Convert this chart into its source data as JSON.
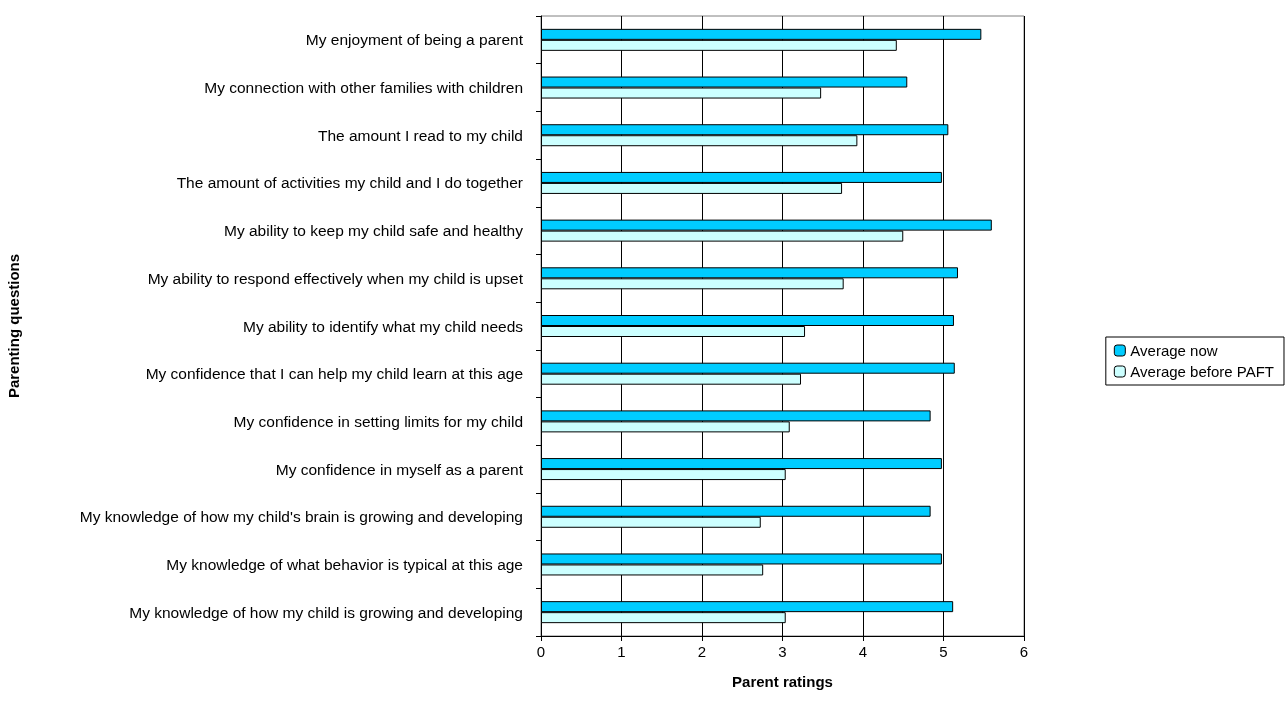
{
  "chart_data": {
    "type": "bar",
    "orientation": "horizontal",
    "xlabel": "Parent ratings",
    "ylabel": "Parenting questions",
    "categories": [
      "My enjoyment of being a parent",
      "My connection with other families with children",
      "The amount I read to my child",
      "The amount of activities my child and I do together",
      "My ability to keep my child safe and healthy",
      "My ability to respond effectively when my child is upset",
      "My ability to identify what my child needs",
      "My confidence that I can help my child learn at this age",
      "My confidence in setting limits for my child",
      "My confidence in myself as a parent",
      "My knowledge of how my child's brain is growing and developing",
      "My knowledge of what behavior is typical at this age",
      "My knowledge of how my child is growing and developing"
    ],
    "series": [
      {
        "name": "Average now",
        "color": "#00ccff",
        "values": [
          5.47,
          4.55,
          5.06,
          4.98,
          5.6,
          5.18,
          5.13,
          5.14,
          4.84,
          4.98,
          4.84,
          4.98,
          5.12
        ]
      },
      {
        "name": "Average before PAFT",
        "color": "#ccffff",
        "values": [
          4.42,
          3.48,
          3.93,
          3.74,
          4.5,
          3.76,
          3.28,
          3.23,
          3.09,
          3.04,
          2.73,
          2.76,
          3.04
        ]
      }
    ],
    "xlim": [
      0,
      6
    ],
    "xticks": [
      0,
      1,
      2,
      3,
      4,
      5,
      6
    ],
    "grid": "x",
    "legend": "right"
  }
}
